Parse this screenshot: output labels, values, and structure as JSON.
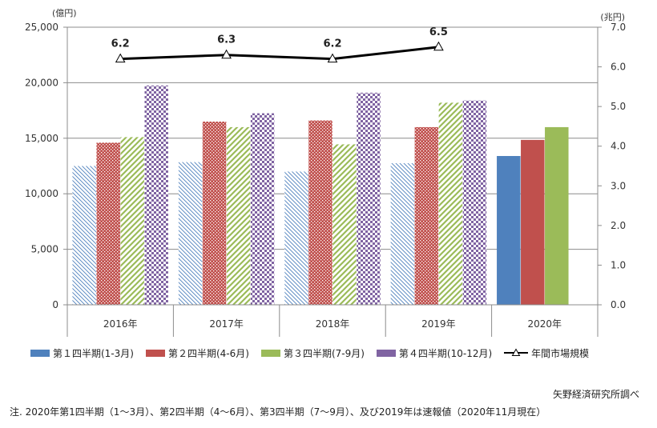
{
  "chart_data": {
    "type": "bar",
    "categories": [
      "2016年",
      "2017年",
      "2018年",
      "2019年",
      "2020年"
    ],
    "series": [
      {
        "name": "第１四半期(1-3月)",
        "values": [
          12500,
          12850,
          12000,
          12750,
          13400
        ],
        "color": "#4f81bd"
      },
      {
        "name": "第２四半期(4-6月)",
        "values": [
          14600,
          16500,
          16600,
          16000,
          14850
        ],
        "color": "#c0504d"
      },
      {
        "name": "第３四半期(7-9月)",
        "values": [
          15100,
          16000,
          14450,
          18200,
          16000
        ],
        "color": "#9bbb59"
      },
      {
        "name": "第４四半期(10-12月)",
        "values": [
          19750,
          17250,
          19100,
          18400,
          null
        ],
        "color": "#8064a2"
      }
    ],
    "line_series": {
      "name": "年間市場規模",
      "values": [
        6.2,
        6.3,
        6.2,
        6.5
      ],
      "labels": [
        "6.2",
        "6.3",
        "6.2",
        "6.5"
      ],
      "color": "#000000"
    },
    "y_left": {
      "unit": "(億円)",
      "min": 0,
      "max": 25000,
      "ticks": [
        0,
        5000,
        10000,
        15000,
        20000,
        25000
      ],
      "tick_labels": [
        "0",
        "5,000",
        "10,000",
        "15,000",
        "20,000",
        "25,000"
      ]
    },
    "y_right": {
      "unit": "(兆円)",
      "min": 0,
      "max": 7,
      "ticks": [
        0,
        1,
        2,
        3,
        4,
        5,
        6,
        7
      ],
      "tick_labels": [
        "0.0",
        "1.0",
        "2.0",
        "3.0",
        "4.0",
        "5.0",
        "6.0",
        "7.0"
      ]
    },
    "gridlines": true,
    "legend_position": "bottom"
  },
  "source": "矢野経済研究所調べ",
  "note": "注. 2020年第1四半期（1～3月）、第2四半期（4～6月）、第3四半期（7～9月）、及び2019年は速報値（2020年11月現在）"
}
